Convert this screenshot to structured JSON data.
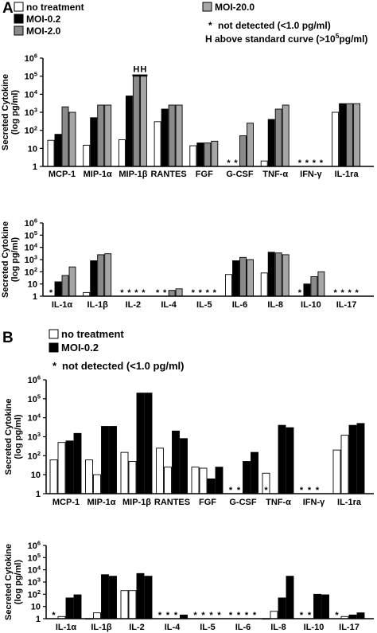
{
  "panels": {
    "A": {
      "letter": "A",
      "legend": [
        {
          "label": "no treatment",
          "color": "#ffffff"
        },
        {
          "label": "MOI-0.2",
          "color": "#000000"
        },
        {
          "label": "MOI-2.0",
          "color": "#8a8a8a"
        },
        {
          "label": "MOI-20.0",
          "color": "#a6a6a6"
        }
      ],
      "notes": [
        {
          "symbol": "*",
          "text": "not detected (<1.0 pg/ml)"
        },
        {
          "symbol": "H",
          "text": "above standard curve (>10",
          "sup": "5",
          "tail": "pg/ml)"
        }
      ]
    },
    "B": {
      "letter": "B",
      "legend": [
        {
          "label": "no treatment",
          "color": "#ffffff"
        },
        {
          "label": "MOI-0.2",
          "color": "#000000"
        }
      ],
      "notes": [
        {
          "symbol": "*",
          "text": "not detected (<1.0 pg/ml)"
        }
      ]
    }
  },
  "axis": {
    "ylabel_line1": "Secreted Cytokine",
    "ylabel_line2": "(log pg/ml)",
    "ticks": [
      {
        "label": "1",
        "value": 1
      },
      {
        "label": "10",
        "value": 10
      },
      {
        "label": "10",
        "sup": "2",
        "value": 100
      },
      {
        "label": "10",
        "sup": "3",
        "value": 1000
      },
      {
        "label": "10",
        "sup": "4",
        "value": 10000
      },
      {
        "label": "10",
        "sup": "5",
        "value": 100000
      },
      {
        "label": "10",
        "sup": "6",
        "value": 1000000
      }
    ]
  },
  "chart_data": [
    {
      "type": "bar",
      "panel": "A",
      "log_scale": true,
      "ylim": [
        1,
        1000000
      ],
      "xlabel": "",
      "ylabel": "Secreted Cytokine (log pg/ml)",
      "categories": [
        "MCP-1",
        "MIP-1α",
        "MIP-1β",
        "RANTES",
        "FGF",
        "G-CSF",
        "TNF-α",
        "IFN-γ",
        "IL-1ra"
      ],
      "series": [
        {
          "name": "no treatment",
          "color": "#ffffff",
          "values": [
            28,
            15,
            30,
            300,
            14,
            null,
            2,
            null,
            1000
          ]
        },
        {
          "name": "MOI-0.2",
          "color": "#000000",
          "values": [
            60,
            500,
            8000,
            1500,
            20,
            null,
            400,
            null,
            3000
          ]
        },
        {
          "name": "MOI-2.0",
          "color": "#8a8a8a",
          "values": [
            2000,
            2500,
            100000,
            2500,
            20,
            50,
            1500,
            null,
            3000
          ]
        },
        {
          "name": "MOI-20.0",
          "color": "#a6a6a6",
          "values": [
            1000,
            2500,
            100000,
            2500,
            25,
            250,
            2500,
            null,
            3000
          ]
        }
      ],
      "annotations": [
        {
          "category": "MIP-1β",
          "series": [
            "MOI-2.0",
            "MOI-20.0"
          ],
          "symbol": "H"
        },
        {
          "category": "G-CSF",
          "series": [
            "no treatment",
            "MOI-0.2"
          ],
          "symbol": "*"
        },
        {
          "category": "IFN-γ",
          "series": [
            "no treatment",
            "MOI-0.2",
            "MOI-2.0",
            "MOI-20.0"
          ],
          "symbol": "*"
        }
      ]
    },
    {
      "type": "bar",
      "panel": "A",
      "log_scale": true,
      "ylim": [
        1,
        1000000
      ],
      "xlabel": "",
      "ylabel": "Secreted Cytokine (log pg/ml)",
      "categories": [
        "IL-1α",
        "IL-1β",
        "IL-2",
        "IL-4",
        "IL-5",
        "IL-6",
        "IL-8",
        "IL-10",
        "IL-17"
      ],
      "series": [
        {
          "name": "no treatment",
          "color": "#ffffff",
          "values": [
            null,
            2,
            null,
            null,
            null,
            60,
            80,
            null,
            null
          ]
        },
        {
          "name": "MOI-0.2",
          "color": "#000000",
          "values": [
            15,
            800,
            null,
            null,
            null,
            800,
            4000,
            10,
            null
          ]
        },
        {
          "name": "MOI-2.0",
          "color": "#8a8a8a",
          "values": [
            50,
            2500,
            null,
            3,
            null,
            1500,
            3500,
            40,
            null
          ]
        },
        {
          "name": "MOI-20.0",
          "color": "#a6a6a6",
          "values": [
            250,
            3000,
            null,
            4,
            null,
            1000,
            2500,
            100,
            null
          ]
        }
      ],
      "annotations": [
        {
          "category": "IL-1α",
          "series": [
            "no treatment"
          ],
          "symbol": "*"
        },
        {
          "category": "IL-2",
          "series": [
            "no treatment",
            "MOI-0.2",
            "MOI-2.0",
            "MOI-20.0"
          ],
          "symbol": "*"
        },
        {
          "category": "IL-4",
          "series": [
            "no treatment",
            "MOI-0.2"
          ],
          "symbol": "*"
        },
        {
          "category": "IL-5",
          "series": [
            "no treatment",
            "MOI-0.2",
            "MOI-2.0",
            "MOI-20.0"
          ],
          "symbol": "*"
        },
        {
          "category": "IL-10",
          "series": [
            "no treatment"
          ],
          "symbol": "*"
        },
        {
          "category": "IL-17",
          "series": [
            "no treatment",
            "MOI-0.2",
            "MOI-2.0",
            "MOI-20.0"
          ],
          "symbol": "*"
        }
      ]
    },
    {
      "type": "bar",
      "panel": "B",
      "log_scale": true,
      "ylim": [
        1,
        1000000
      ],
      "xlabel": "",
      "ylabel": "Secreted Cytokine (log pg/ml)",
      "categories": [
        "MCP-1",
        "MIP-1α",
        "MIP-1β",
        "RANTES",
        "FGF",
        "G-CSF",
        "TNF-α",
        "IFN-γ",
        "IL-1ra"
      ],
      "series": [
        {
          "name": "no treatment",
          "color": "#ffffff",
          "values": [
            60,
            60,
            150,
            250,
            25,
            null,
            12,
            null,
            200
          ]
        },
        {
          "name": "no treatment",
          "color": "#ffffff",
          "values": [
            500,
            10,
            50,
            25,
            22,
            null,
            null,
            null,
            1200
          ]
        },
        {
          "name": "MOI-0.2",
          "color": "#000000",
          "values": [
            600,
            3500,
            200000,
            2000,
            6,
            50,
            4000,
            null,
            4000
          ]
        },
        {
          "name": "MOI-0.2",
          "color": "#000000",
          "values": [
            1500,
            3500,
            200000,
            800,
            25,
            150,
            3000,
            null,
            5000
          ]
        }
      ],
      "annotations": [
        {
          "category": "G-CSF",
          "series": [
            "no treatment",
            "no treatment"
          ],
          "symbol": "*"
        },
        {
          "category": "TNF-α",
          "series": [
            "no treatment"
          ],
          "symbol": "*"
        },
        {
          "category": "IFN-γ",
          "series": [
            "no treatment",
            "no treatment",
            "MOI-0.2"
          ],
          "symbol": "*"
        }
      ]
    },
    {
      "type": "bar",
      "panel": "B",
      "log_scale": true,
      "ylim": [
        1,
        1000000
      ],
      "xlabel": "",
      "ylabel": "Secreted Cytokine (log pg/ml)",
      "categories": [
        "IL-1α",
        "IL-1β",
        "IL-2",
        "IL-4",
        "IL-5",
        "IL-6",
        "IL-8",
        "IL-10",
        "IL-17"
      ],
      "series": [
        {
          "name": "no treatment",
          "color": "#ffffff",
          "values": [
            null,
            1,
            200,
            null,
            null,
            null,
            1,
            null,
            null
          ]
        },
        {
          "name": "no treatment",
          "color": "#ffffff",
          "values": [
            1.5,
            3,
            200,
            null,
            null,
            null,
            4,
            null,
            1.5
          ]
        },
        {
          "name": "MOI-0.2",
          "color": "#000000",
          "values": [
            50,
            4000,
            5000,
            null,
            null,
            null,
            50,
            100,
            2
          ]
        },
        {
          "name": "MOI-0.2",
          "color": "#000000",
          "values": [
            90,
            3000,
            3000,
            2,
            null,
            null,
            3000,
            90,
            3
          ]
        }
      ],
      "annotations": [
        {
          "category": "IL-1α",
          "series": [
            "no treatment"
          ],
          "symbol": "*"
        },
        {
          "category": "IL-4",
          "series": [
            "no treatment",
            "no treatment",
            "MOI-0.2"
          ],
          "symbol": "*"
        },
        {
          "category": "IL-5",
          "series": [
            "no treatment",
            "no treatment",
            "MOI-0.2",
            "MOI-0.2"
          ],
          "symbol": "*"
        },
        {
          "category": "IL-6",
          "series": [
            "no treatment",
            "no treatment",
            "MOI-0.2",
            "MOI-0.2"
          ],
          "symbol": "*"
        },
        {
          "category": "IL-10",
          "series": [
            "no treatment",
            "no treatment"
          ],
          "symbol": "*"
        },
        {
          "category": "IL-17",
          "series": [
            "no treatment"
          ],
          "symbol": "*"
        }
      ]
    }
  ]
}
